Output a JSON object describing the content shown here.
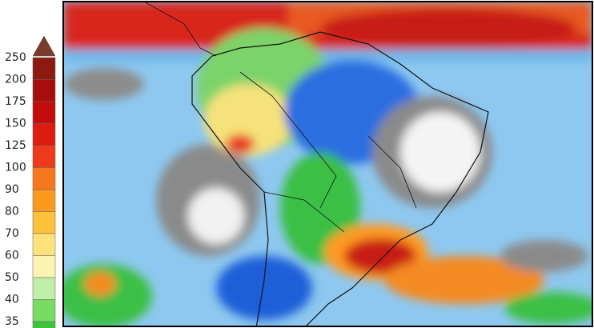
{
  "legend": {
    "levels": [
      {
        "value": 250,
        "color": "#8c1a0f"
      },
      {
        "value": 200,
        "color": "#a80d0d"
      },
      {
        "value": 175,
        "color": "#c40c0c"
      },
      {
        "value": 150,
        "color": "#dc1c10"
      },
      {
        "value": 125,
        "color": "#ee3a18"
      },
      {
        "value": 100,
        "color": "#f7781c"
      },
      {
        "value": 90,
        "color": "#fb9a1c"
      },
      {
        "value": 80,
        "color": "#fdc13a"
      },
      {
        "value": 70,
        "color": "#fde27a"
      },
      {
        "value": 60,
        "color": "#fdf3b0"
      },
      {
        "value": 50,
        "color": "#bff0a8"
      },
      {
        "value": 40,
        "color": "#78dc62"
      },
      {
        "value": 35,
        "color": "#3ec43a"
      }
    ]
  }
}
